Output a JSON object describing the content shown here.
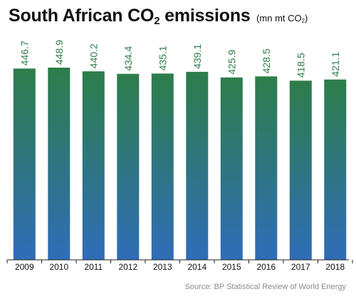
{
  "chart_data": {
    "type": "bar",
    "title_prefix": "South African CO",
    "title_sub": "2",
    "title_suffix": " emissions",
    "unit_prefix": "(mn mt CO",
    "unit_sub": "2",
    "unit_suffix": ")",
    "categories": [
      "2009",
      "2010",
      "2011",
      "2012",
      "2013",
      "2014",
      "2015",
      "2016",
      "2017",
      "2018"
    ],
    "values": [
      446.7,
      448.9,
      440.2,
      434.4,
      435.1,
      439.1,
      425.9,
      428.5,
      418.5,
      421.1
    ],
    "value_labels": [
      "446.7",
      "448.9",
      "440.2",
      "434.4",
      "435.1",
      "439.1",
      "425.9",
      "428.5",
      "418.5",
      "421.1"
    ],
    "ylim": [
      0,
      448.9
    ],
    "grid": false,
    "legend": "none",
    "colors": {
      "bar_top": "#2e7d4a",
      "bar_bottom": "#2f6db8",
      "label": "#2f7d4a",
      "axis": "#222222"
    }
  },
  "source": "Source: BP Statistical Review of World Energy"
}
